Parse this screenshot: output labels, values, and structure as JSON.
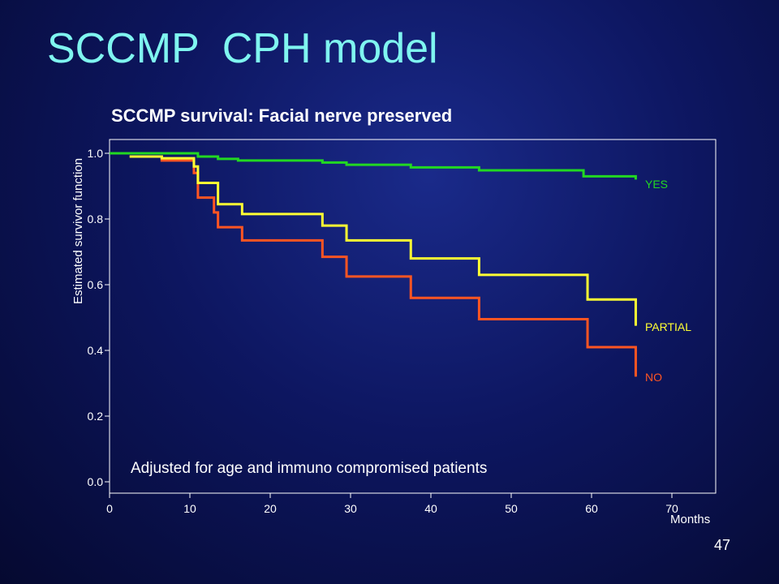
{
  "slide": {
    "title": "SCCMP  CPH model",
    "page_number": "47"
  },
  "chart_data": {
    "type": "line",
    "step": true,
    "title": "SCCMP survival: Facial nerve preserved",
    "xlabel": "Months",
    "ylabel": "Estimated survivor function",
    "xlim": [
      0,
      75
    ],
    "ylim": [
      0,
      1.02
    ],
    "xticks": [
      "0",
      "10",
      "20",
      "30",
      "40",
      "50",
      "60",
      "70"
    ],
    "yticks": [
      "0.0",
      "0.2",
      "0.4",
      "0.6",
      "0.8",
      "1.0"
    ],
    "annotation": "Adjusted for age and immuno compromised patients",
    "series": [
      {
        "name": "YES",
        "color": "#22d822",
        "steps": [
          [
            0,
            1.0
          ],
          [
            2.5,
            1.0
          ],
          [
            11,
            0.99
          ],
          [
            13.5,
            0.983
          ],
          [
            16,
            0.978
          ],
          [
            26.5,
            0.972
          ],
          [
            29.5,
            0.965
          ],
          [
            37.5,
            0.957
          ],
          [
            46,
            0.948
          ],
          [
            59,
            0.93
          ],
          [
            65.5,
            0.92
          ]
        ]
      },
      {
        "name": "PARTIAL",
        "color": "#ffff33",
        "steps": [
          [
            2.5,
            0.99
          ],
          [
            6.5,
            0.985
          ],
          [
            10.5,
            0.96
          ],
          [
            11,
            0.91
          ],
          [
            13.5,
            0.845
          ],
          [
            16.5,
            0.815
          ],
          [
            26.5,
            0.78
          ],
          [
            29.5,
            0.735
          ],
          [
            37.5,
            0.68
          ],
          [
            46,
            0.63
          ],
          [
            59.5,
            0.555
          ],
          [
            65.5,
            0.475
          ]
        ]
      },
      {
        "name": "NO",
        "color": "#ff5522",
        "steps": [
          [
            2.5,
            0.99
          ],
          [
            6.5,
            0.978
          ],
          [
            10.5,
            0.94
          ],
          [
            11,
            0.865
          ],
          [
            13,
            0.82
          ],
          [
            13.5,
            0.775
          ],
          [
            16.5,
            0.735
          ],
          [
            26.5,
            0.685
          ],
          [
            29.5,
            0.625
          ],
          [
            37.5,
            0.56
          ],
          [
            46,
            0.495
          ],
          [
            59.5,
            0.41
          ],
          [
            65.5,
            0.32
          ]
        ]
      }
    ]
  }
}
